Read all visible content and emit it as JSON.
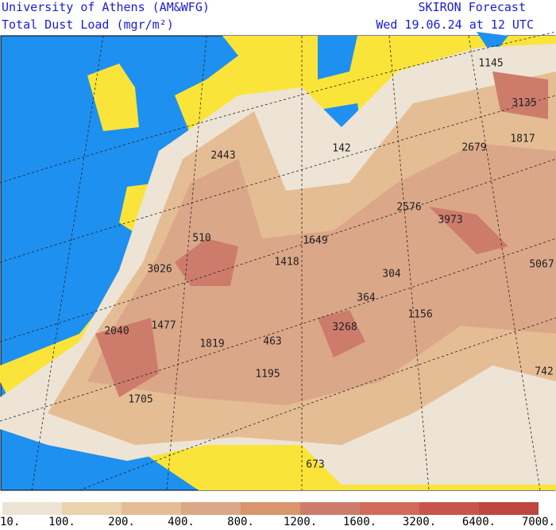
{
  "header": {
    "left": [
      "University of Athens (AM&WFG)",
      "Total Dust Load (mgr/m²)"
    ],
    "right": [
      "SKIRON Forecast",
      "Wed 19.06.24 at 12 UTC"
    ]
  },
  "map_labels": [
    1145,
    3135,
    1817,
    2679,
    2443,
    142,
    2576,
    3973,
    510,
    1649,
    3026,
    1418,
    304,
    5067,
    364,
    1156,
    2040,
    1477,
    3268,
    1819,
    463,
    1195,
    742,
    1705,
    673
  ],
  "legend": {
    "labels": [
      "10.",
      "100.",
      "200.",
      "400.",
      "800.",
      "1200.",
      "1600.",
      "3200.",
      "6400.",
      "7000."
    ],
    "colors": [
      "#ede4d5",
      "#e9d2ac",
      "#e5bd95",
      "#dba789",
      "#d9956c",
      "#cd7c6c",
      "#d06b5c",
      "#c8544b",
      "#be4540"
    ]
  }
}
